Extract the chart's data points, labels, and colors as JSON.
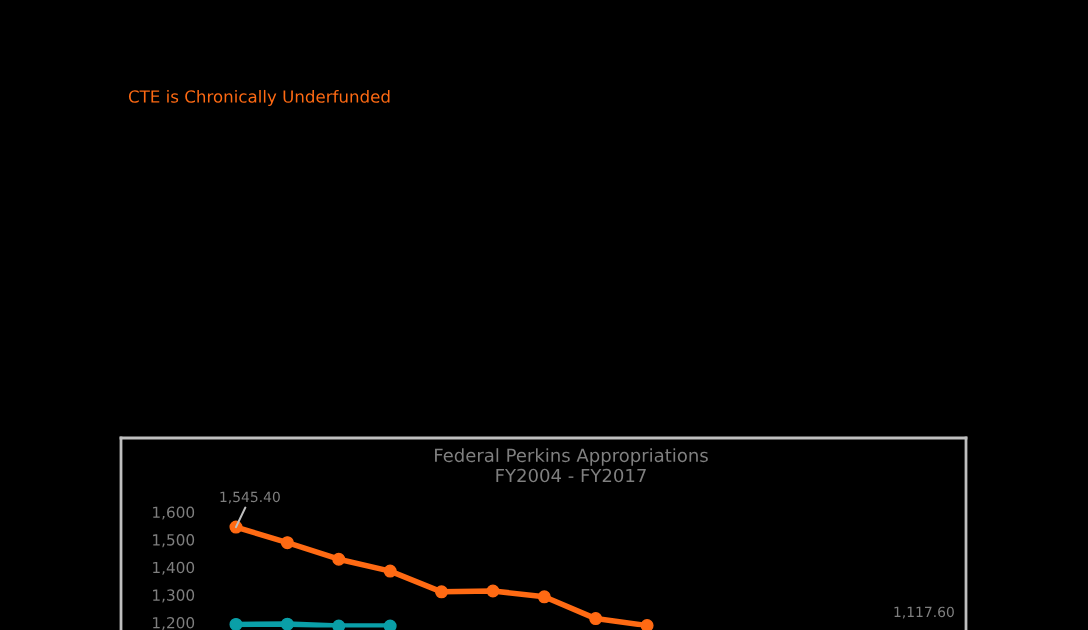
{
  "chart_data": {
    "type": "line",
    "title": "CTE is Chronically Underfunded",
    "subtitle": "Federal Perkins Appropriations\nFY2004 - FY2017",
    "categories": [
      null,
      null,
      null,
      null,
      null,
      null,
      null,
      null,
      null,
      null,
      null,
      null,
      null,
      null
    ],
    "series": [
      {
        "color": "#ff6a13",
        "values": [
          1545.4,
          1489,
          1429,
          1386,
          1311,
          1314,
          1293,
          1214,
          1189,
          null,
          null,
          null,
          null,
          null
        ],
        "value_labels": [
          "1,545.40",
          null,
          null,
          null,
          null,
          null,
          null,
          null,
          null,
          null,
          null,
          null,
          null,
          null
        ]
      },
      {
        "color": "#0a9fa8",
        "values": [
          1193,
          1194,
          1187,
          1187,
          null,
          null,
          null,
          null,
          null,
          null,
          null,
          null,
          null,
          null
        ]
      }
    ],
    "annotations": [
      "1,117.60"
    ],
    "ylim": [
      1180,
      1600
    ],
    "yticks": [
      {
        "value": 1200,
        "label": "1,200"
      },
      {
        "value": 1300,
        "label": "1,300"
      },
      {
        "value": 1400,
        "label": "1,400"
      },
      {
        "value": 1500,
        "label": "1,500"
      },
      {
        "value": 1600,
        "label": "1,600"
      }
    ],
    "grid": false,
    "legend": false,
    "marker": "circle",
    "line_style": "solid"
  }
}
